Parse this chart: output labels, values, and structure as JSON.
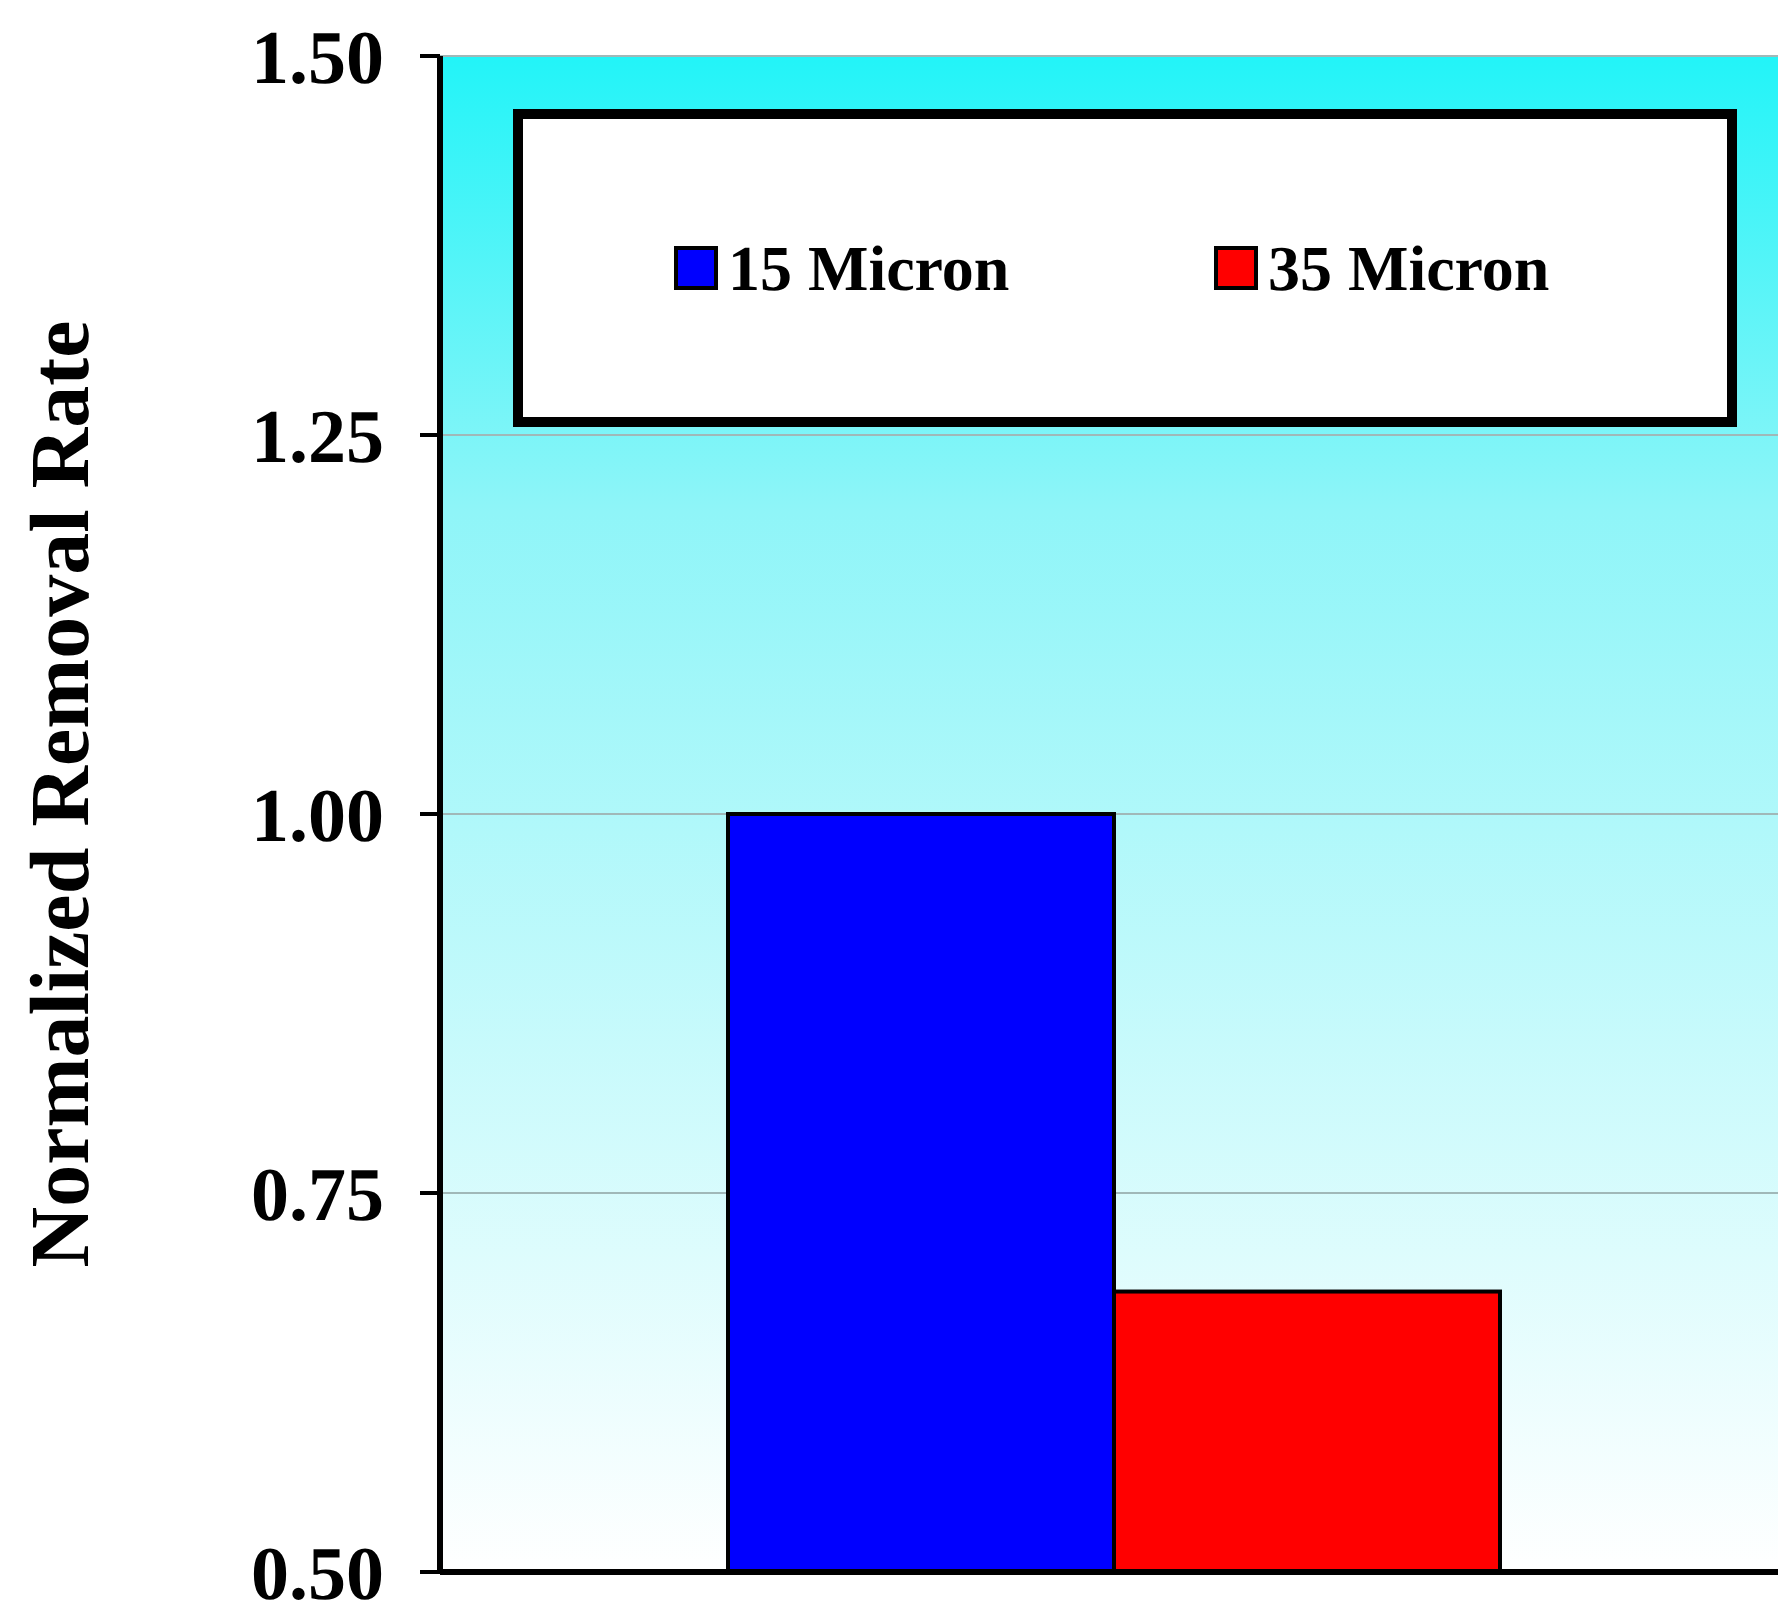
{
  "chart_data": {
    "type": "bar",
    "ylabel": "Normalized Removal Rate",
    "categories": [
      null
    ],
    "series": [
      {
        "name": "15 Micron",
        "color": "#0000ff",
        "values": [
          1.0
        ]
      },
      {
        "name": "35 Micron",
        "color": "#ff0000",
        "values": [
          0.685
        ]
      }
    ],
    "ylim": [
      0.5,
      1.5
    ],
    "yticks": [
      {
        "value": 0.5,
        "label": "0.50"
      },
      {
        "value": 0.75,
        "label": "0.75"
      },
      {
        "value": 1.0,
        "label": "1.00"
      },
      {
        "value": 1.25,
        "label": "1.25"
      },
      {
        "value": 1.5,
        "label": "1.50"
      }
    ],
    "grid": "y",
    "legend": "top"
  }
}
